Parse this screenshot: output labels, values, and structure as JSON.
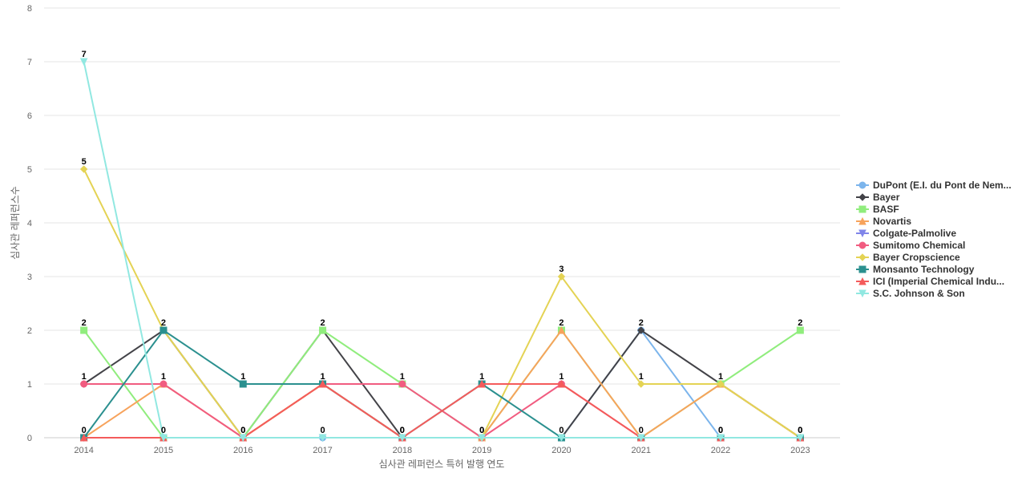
{
  "chart_data": {
    "type": "line",
    "title": "",
    "xlabel": "심사관 레퍼런스 특허 발행 연도",
    "ylabel": "심사관 레퍼런스수",
    "ylim": [
      0,
      8
    ],
    "yticks": [
      0,
      1,
      2,
      3,
      4,
      5,
      6,
      7,
      8
    ],
    "grid": true,
    "legend_position": "right",
    "categories": [
      "2014",
      "2015",
      "2016",
      "2017",
      "2018",
      "2019",
      "2020",
      "2021",
      "2022",
      "2023"
    ],
    "series": [
      {
        "name": "DuPont (E.I. du Pont de Nem...",
        "color": "#7cb5ec",
        "marker": "circle",
        "values": [
          0,
          0,
          0,
          0,
          0,
          0,
          0,
          2,
          0,
          0
        ]
      },
      {
        "name": "Bayer",
        "color": "#434348",
        "marker": "diamond",
        "values": [
          1,
          2,
          0,
          2,
          0,
          0,
          0,
          2,
          1,
          0
        ]
      },
      {
        "name": "BASF",
        "color": "#90ed7d",
        "marker": "square",
        "values": [
          2,
          0,
          0,
          2,
          1,
          0,
          2,
          0,
          1,
          2
        ]
      },
      {
        "name": "Novartis",
        "color": "#f7a35c",
        "marker": "triangle",
        "values": [
          0,
          1,
          0,
          1,
          0,
          0,
          2,
          0,
          1,
          0
        ]
      },
      {
        "name": "Colgate-Palmolive",
        "color": "#8085e9",
        "marker": "triangle-down",
        "values": [
          0,
          0,
          0,
          0,
          0,
          0,
          0,
          0,
          0,
          0
        ]
      },
      {
        "name": "Sumitomo Chemical",
        "color": "#f15c80",
        "marker": "circle",
        "values": [
          1,
          1,
          0,
          1,
          1,
          0,
          1,
          0,
          0,
          0
        ]
      },
      {
        "name": "Bayer Cropscience",
        "color": "#e4d354",
        "marker": "diamond",
        "values": [
          5,
          2,
          0,
          1,
          0,
          0,
          3,
          1,
          1,
          0
        ]
      },
      {
        "name": "Monsanto Technology",
        "color": "#2b908f",
        "marker": "square",
        "values": [
          0,
          2,
          1,
          1,
          0,
          1,
          0,
          0,
          0,
          0
        ]
      },
      {
        "name": "ICI (Imperial Chemical Indu...",
        "color": "#f45b5b",
        "marker": "triangle",
        "values": [
          0,
          0,
          0,
          1,
          0,
          1,
          1,
          0,
          0,
          0
        ]
      },
      {
        "name": "S.C. Johnson & Son",
        "color": "#91e8e1",
        "marker": "triangle-down",
        "values": [
          7,
          0,
          0,
          0,
          0,
          0,
          0,
          0,
          0,
          0
        ]
      }
    ],
    "data_labels": [
      [
        "2",
        "2",
        "1",
        "2",
        "1",
        "1",
        "2",
        "2",
        "1",
        "2"
      ],
      [
        "1",
        "1",
        "0",
        "1",
        "0",
        "0",
        "1",
        "1",
        "0",
        "0"
      ],
      [
        "0",
        "0",
        "0",
        "0",
        "0",
        "0",
        "0",
        "0",
        "0",
        "0"
      ]
    ],
    "data_label_values": [
      [
        2,
        2,
        1,
        2,
        1,
        1,
        2,
        2,
        1,
        2
      ],
      [
        1,
        1,
        0,
        1,
        0,
        0,
        1,
        1,
        0,
        0
      ],
      [
        0,
        0,
        0,
        0,
        0,
        0,
        0,
        0,
        0,
        0
      ]
    ],
    "extra_labels": [
      {
        "category": "2014",
        "value": 7,
        "label": "7"
      },
      {
        "category": "2014",
        "value": 5,
        "label": "5"
      },
      {
        "category": "2020",
        "value": 3,
        "label": "3"
      }
    ]
  }
}
